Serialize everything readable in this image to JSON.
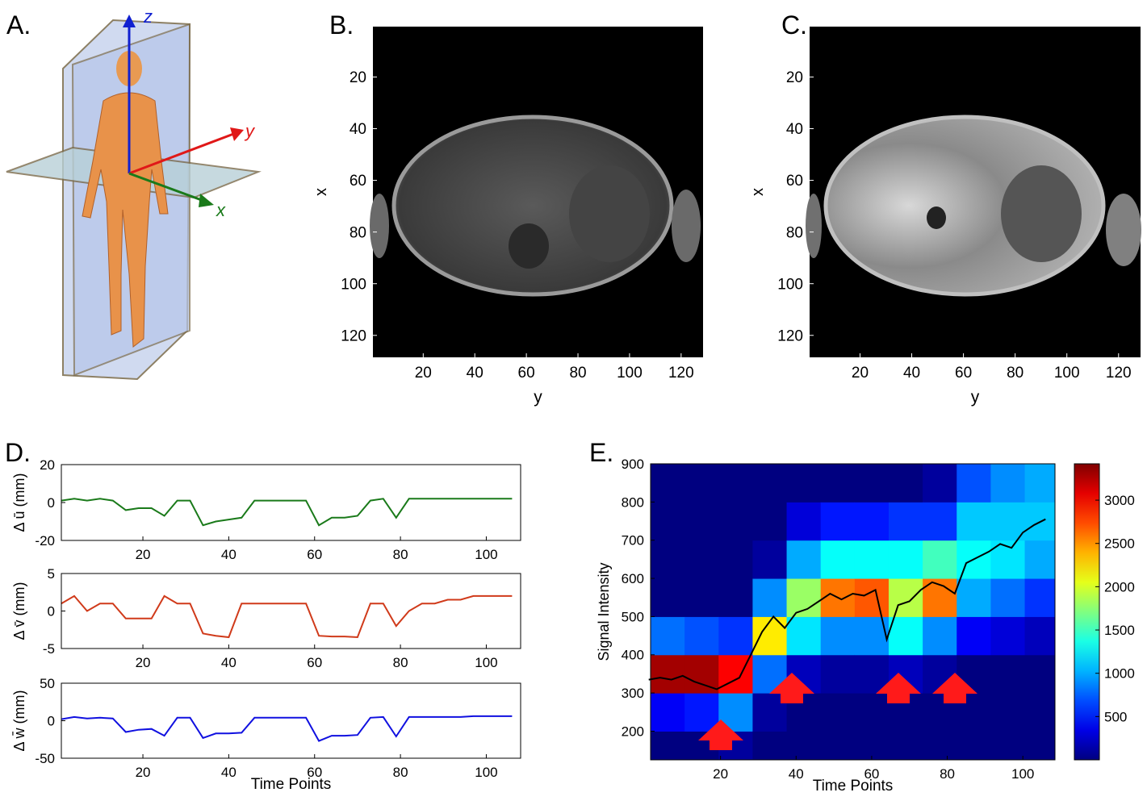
{
  "panel_labels": [
    "A.",
    "B.",
    "C.",
    "D.",
    "E."
  ],
  "illustration_axes": [
    "z",
    "y",
    "x"
  ],
  "chart_data": [
    {
      "type": "image",
      "xlabel": "y",
      "ylabel": "x",
      "xlim": [
        0.5,
        128.5
      ],
      "ylim": [
        0.5,
        128.5
      ],
      "y_reversed": true,
      "xticks": [
        20,
        40,
        60,
        80,
        100,
        120
      ],
      "yticks": [
        20,
        40,
        60,
        80,
        100,
        120
      ]
    },
    {
      "type": "image",
      "xlabel": "y",
      "ylabel": "x",
      "xlim": [
        0.5,
        128.5
      ],
      "ylim": [
        0.5,
        128.5
      ],
      "y_reversed": true,
      "xticks": [
        20,
        40,
        60,
        80,
        100,
        120
      ],
      "yticks": [
        20,
        40,
        60,
        80,
        100,
        120
      ]
    },
    {
      "type": "line",
      "ylabel": "Δ ū (mm)",
      "xlim": [
        1,
        108
      ],
      "ylim": [
        -20,
        20
      ],
      "xticks": [
        20,
        40,
        60,
        80,
        100
      ],
      "yticks": [
        -20,
        0,
        20
      ],
      "x": [
        1,
        4,
        7,
        10,
        13,
        16,
        19,
        22,
        25,
        28,
        31,
        34,
        37,
        40,
        43,
        46,
        49,
        52,
        55,
        58,
        61,
        64,
        67,
        70,
        73,
        76,
        79,
        82,
        85,
        88,
        91,
        94,
        97,
        100,
        103,
        106
      ],
      "series": [
        {
          "color": "#1a7a1a",
          "values": [
            1,
            2,
            1,
            2,
            1,
            -4,
            -3,
            -3,
            -7,
            1,
            1,
            -12,
            -10,
            -9,
            -8,
            1,
            1,
            1,
            1,
            1,
            -12,
            -8,
            -8,
            -7,
            1,
            2,
            -8,
            2,
            2,
            2,
            2,
            2,
            2,
            2,
            2,
            2
          ]
        }
      ]
    },
    {
      "type": "line",
      "ylabel": "Δ v̄ (mm)",
      "xlim": [
        1,
        108
      ],
      "ylim": [
        -5,
        5
      ],
      "xticks": [
        20,
        40,
        60,
        80,
        100
      ],
      "yticks": [
        -5,
        0,
        5
      ],
      "x": [
        1,
        4,
        7,
        10,
        13,
        16,
        19,
        22,
        25,
        28,
        31,
        34,
        37,
        40,
        43,
        46,
        49,
        52,
        55,
        58,
        61,
        64,
        67,
        70,
        73,
        76,
        79,
        82,
        85,
        88,
        91,
        94,
        97,
        100,
        103,
        106
      ],
      "series": [
        {
          "color": "#d03a1a",
          "values": [
            1,
            2,
            0,
            1,
            1,
            -1,
            -1,
            -1,
            2,
            1,
            1,
            -3,
            -3.3,
            -3.5,
            1,
            1,
            1,
            1,
            1,
            1,
            -3.3,
            -3.4,
            -3.4,
            -3.5,
            1,
            1,
            -2,
            0,
            1,
            1,
            1.5,
            1.5,
            2,
            2,
            2,
            2
          ]
        }
      ]
    },
    {
      "type": "line",
      "ylabel": "Δ w̄ (mm)",
      "xlabel": "Time Points",
      "xlim": [
        1,
        108
      ],
      "ylim": [
        -50,
        50
      ],
      "xticks": [
        20,
        40,
        60,
        80,
        100
      ],
      "yticks": [
        -50,
        0,
        50
      ],
      "x": [
        1,
        4,
        7,
        10,
        13,
        16,
        19,
        22,
        25,
        28,
        31,
        34,
        37,
        40,
        43,
        46,
        49,
        52,
        55,
        58,
        61,
        64,
        67,
        70,
        73,
        76,
        79,
        82,
        85,
        88,
        91,
        94,
        97,
        100,
        103,
        106
      ],
      "series": [
        {
          "color": "#1010e0",
          "values": [
            2,
            5,
            3,
            4,
            3,
            -15,
            -12,
            -11,
            -20,
            4,
            4,
            -23,
            -17,
            -17,
            -16,
            4,
            4,
            4,
            4,
            4,
            -27,
            -20,
            -20,
            -19,
            4,
            5,
            -21,
            5,
            5,
            5,
            5,
            5,
            6,
            6,
            6,
            6
          ]
        }
      ]
    },
    {
      "type": "heatmap",
      "xlabel": "Time Points",
      "ylabel": "Signal Intensity",
      "xlim": [
        1.5,
        108.5
      ],
      "ylim": [
        125,
        900
      ],
      "xticks": [
        20,
        40,
        60,
        80,
        100
      ],
      "yticks": [
        200,
        300,
        400,
        500,
        600,
        700,
        800,
        900
      ],
      "clim": [
        0,
        3420
      ],
      "colorbar_ticks": [
        500,
        1000,
        1500,
        2000,
        2500,
        3000
      ],
      "x_bins": [
        1.5,
        10.5,
        19.5,
        28.5,
        37.5,
        46.5,
        55.5,
        64.5,
        73.5,
        82.5,
        91.5,
        100.5,
        108.5
      ],
      "y_bins": [
        125,
        200,
        300,
        400,
        500,
        600,
        700,
        800,
        900
      ],
      "values": [
        [
          0,
          400,
          3300,
          800,
          0,
          0,
          0,
          0
        ],
        [
          0,
          500,
          3300,
          700,
          0,
          0,
          0,
          0
        ],
        [
          100,
          900,
          3000,
          600,
          0,
          0,
          0,
          0
        ],
        [
          0,
          100,
          800,
          2200,
          900,
          100,
          0,
          0
        ],
        [
          0,
          0,
          200,
          1200,
          1800,
          1000,
          300,
          0
        ],
        [
          0,
          0,
          100,
          900,
          2600,
          1300,
          500,
          0
        ],
        [
          0,
          0,
          100,
          900,
          2700,
          1300,
          500,
          0
        ],
        [
          0,
          0,
          200,
          1300,
          1900,
          1300,
          600,
          0
        ],
        [
          0,
          0,
          100,
          900,
          2600,
          1500,
          600,
          100
        ],
        [
          0,
          0,
          0,
          400,
          1000,
          1300,
          1100,
          700
        ],
        [
          0,
          0,
          0,
          300,
          800,
          1200,
          1100,
          900
        ],
        [
          0,
          0,
          0,
          200,
          600,
          1000,
          1100,
          1000
        ]
      ],
      "line": {
        "color": "#000000",
        "x": [
          1,
          4,
          7,
          10,
          13,
          16,
          19,
          22,
          25,
          28,
          31,
          34,
          37,
          40,
          43,
          46,
          49,
          52,
          55,
          58,
          61,
          64,
          67,
          70,
          73,
          76,
          79,
          82,
          85,
          88,
          91,
          94,
          97,
          100,
          103,
          106
        ],
        "values": [
          335,
          340,
          335,
          345,
          330,
          320,
          310,
          325,
          340,
          400,
          460,
          500,
          470,
          510,
          520,
          540,
          560,
          545,
          560,
          555,
          570,
          440,
          530,
          540,
          570,
          590,
          580,
          560,
          640,
          655,
          670,
          690,
          680,
          720,
          740,
          755
        ]
      }
    }
  ]
}
